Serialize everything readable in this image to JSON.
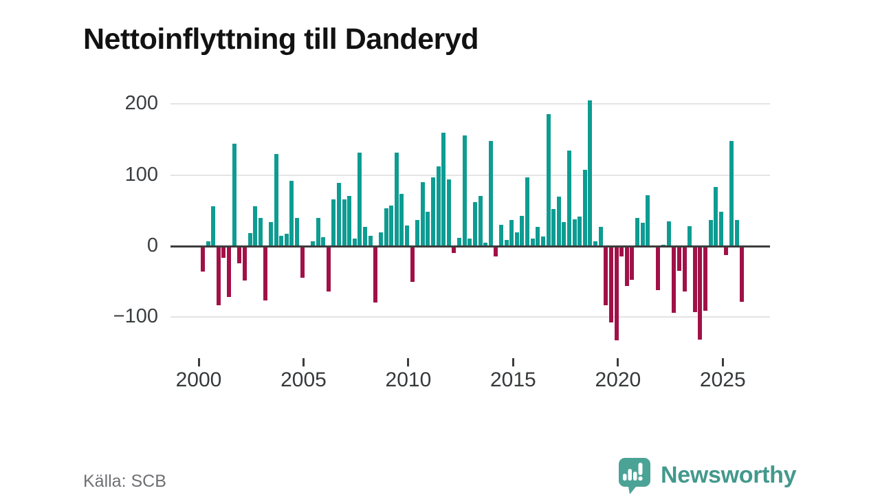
{
  "page": {
    "title": "Nettoinflyttning till Danderyd"
  },
  "footer": {
    "source": "Källa: SCB",
    "brand": "Newsworthy"
  },
  "colors": {
    "positive": "#0e9c92",
    "negative": "#a11147",
    "logo": "#4ba396",
    "axis": "#3c3c3c",
    "grid": "#e4e4e6"
  },
  "chart_data": {
    "type": "bar",
    "title": "Nettoinflyttning till Danderyd",
    "xlabel": "",
    "ylabel": "",
    "frequency": "quarterly",
    "x_start": "2000-K1",
    "x_end": "2025-K4",
    "x_tick_labels": [
      "2000",
      "2005",
      "2010",
      "2015",
      "2020",
      "2025"
    ],
    "y_ticks": [
      {
        "value": 200,
        "label": "200"
      },
      {
        "value": 100,
        "label": "100"
      },
      {
        "value": 0,
        "label": "0"
      },
      {
        "value": -100,
        "label": "−100"
      }
    ],
    "ylim": [
      -170,
      210
    ],
    "grid": true,
    "legend": "none",
    "positive_color": "#0e9c92",
    "negative_color": "#a11147",
    "series": [
      {
        "name": "Nettoinflyttning per kvartal",
        "values": [
          -36,
          7,
          56,
          -83,
          -16,
          -72,
          144,
          -24,
          -48,
          18,
          56,
          40,
          -76,
          34,
          130,
          15,
          17,
          92,
          40,
          -45,
          0,
          7,
          40,
          13,
          -64,
          66,
          89,
          66,
          71,
          11,
          132,
          27,
          15,
          -79,
          19,
          53,
          57,
          132,
          74,
          29,
          -50,
          37,
          90,
          48,
          97,
          112,
          160,
          94,
          -10,
          12,
          156,
          11,
          62,
          71,
          5,
          148,
          -15,
          30,
          9,
          37,
          19,
          43,
          97,
          11,
          27,
          14,
          186,
          52,
          70,
          34,
          135,
          38,
          42,
          107,
          205,
          7,
          27,
          -83,
          -107,
          -133,
          -15,
          -56,
          -47,
          40,
          33,
          72,
          0,
          -62,
          2,
          35,
          -94,
          -35,
          -64,
          28,
          -93,
          -132,
          -91,
          37,
          83,
          48,
          -13,
          148,
          37,
          -78
        ]
      }
    ]
  }
}
